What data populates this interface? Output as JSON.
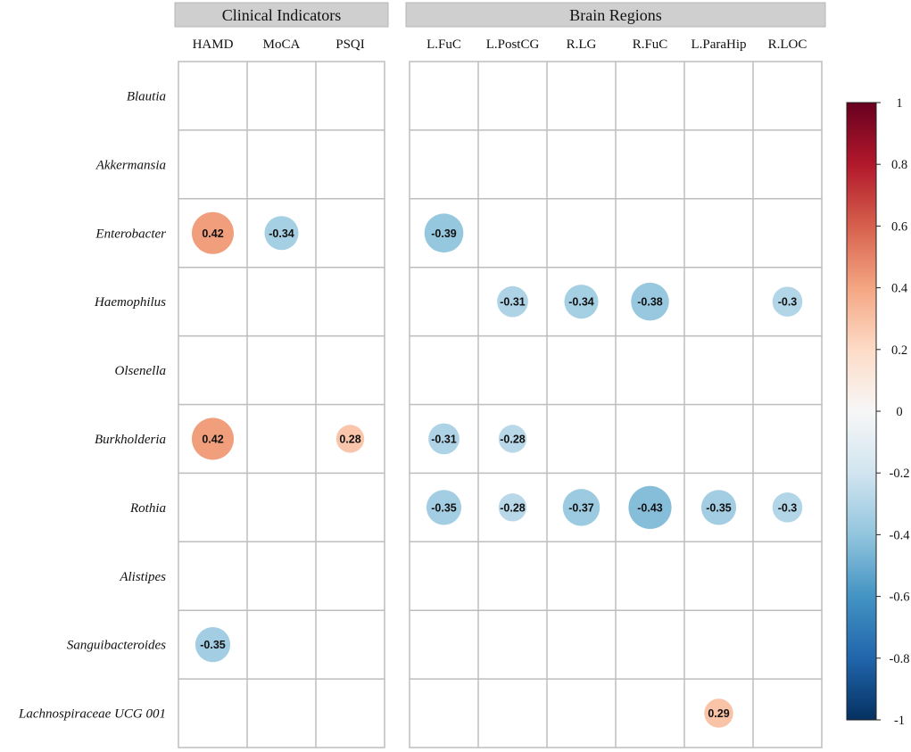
{
  "chart_data": {
    "type": "heatmap",
    "panels": [
      {
        "title": "Clinical Indicators",
        "columns": [
          "HAMD",
          "MoCA",
          "PSQI"
        ]
      },
      {
        "title": "Brain Regions",
        "columns": [
          "L.FuC",
          "L.PostCG",
          "R.LG",
          "R.FuC",
          "L.ParaHip",
          "R.LOC"
        ]
      }
    ],
    "rows": [
      "Blautia",
      "Akkermansia",
      "Enterobacter",
      "Haemophilus",
      "Olsenella",
      "Burkholderia",
      "Rothia",
      "Alistipes",
      "Sanguibacteroides",
      "Lachnospiraceae UCG 001"
    ],
    "values": [
      {
        "row": "Enterobacter",
        "column": "HAMD",
        "value": 0.42,
        "label": "0.42"
      },
      {
        "row": "Enterobacter",
        "column": "MoCA",
        "value": -0.34,
        "label": "-0.34"
      },
      {
        "row": "Enterobacter",
        "column": "L.FuC",
        "value": -0.39,
        "label": "-0.39"
      },
      {
        "row": "Haemophilus",
        "column": "L.PostCG",
        "value": -0.31,
        "label": "-0.31"
      },
      {
        "row": "Haemophilus",
        "column": "R.LG",
        "value": -0.34,
        "label": "-0.34"
      },
      {
        "row": "Haemophilus",
        "column": "R.FuC",
        "value": -0.38,
        "label": "-0.38"
      },
      {
        "row": "Haemophilus",
        "column": "R.LOC",
        "value": -0.3,
        "label": "-0.3"
      },
      {
        "row": "Burkholderia",
        "column": "HAMD",
        "value": 0.42,
        "label": "0.42"
      },
      {
        "row": "Burkholderia",
        "column": "PSQI",
        "value": 0.28,
        "label": "0.28"
      },
      {
        "row": "Burkholderia",
        "column": "L.FuC",
        "value": -0.31,
        "label": "-0.31"
      },
      {
        "row": "Burkholderia",
        "column": "L.PostCG",
        "value": -0.28,
        "label": "-0.28"
      },
      {
        "row": "Rothia",
        "column": "L.FuC",
        "value": -0.35,
        "label": "-0.35"
      },
      {
        "row": "Rothia",
        "column": "L.PostCG",
        "value": -0.28,
        "label": "-0.28"
      },
      {
        "row": "Rothia",
        "column": "R.LG",
        "value": -0.37,
        "label": "-0.37"
      },
      {
        "row": "Rothia",
        "column": "R.FuC",
        "value": -0.43,
        "label": "-0.43"
      },
      {
        "row": "Rothia",
        "column": "L.ParaHip",
        "value": -0.35,
        "label": "-0.35"
      },
      {
        "row": "Rothia",
        "column": "R.LOC",
        "value": -0.3,
        "label": "-0.3"
      },
      {
        "row": "Sanguibacteroides",
        "column": "HAMD",
        "value": -0.35,
        "label": "-0.35"
      },
      {
        "row": "Lachnospiraceae UCG 001",
        "column": "L.ParaHip",
        "value": 0.29,
        "label": "0.29"
      }
    ],
    "colorbar": {
      "range": [
        -1,
        1
      ],
      "ticks": [
        "1",
        "0.8",
        "0.6",
        "0.4",
        "0.2",
        "0",
        "-0.2",
        "-0.4",
        "-0.6",
        "-0.8",
        "-1"
      ],
      "tick_values": [
        1,
        0.8,
        0.6,
        0.4,
        0.2,
        0,
        -0.2,
        -0.4,
        -0.6,
        -0.8,
        -1
      ],
      "colormap": "RdBu",
      "stops": [
        "#053061",
        "#2166ac",
        "#4393c3",
        "#92c5de",
        "#d1e5f0",
        "#f7f7f7",
        "#fddbc7",
        "#f4a582",
        "#d6604d",
        "#b2182b",
        "#67001f"
      ]
    },
    "colors": {
      "grid": "#bdbdbd",
      "header_fill": "#cfcfcf"
    }
  }
}
